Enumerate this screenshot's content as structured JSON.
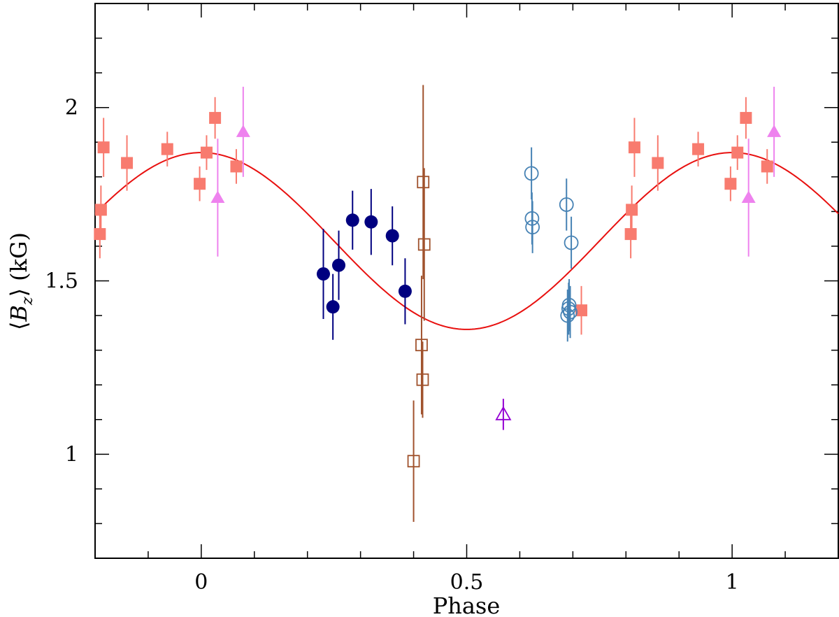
{
  "chart_data": {
    "type": "scatter",
    "title": "",
    "xlabel": "Phase",
    "ylabel_parts": {
      "open": "⟨",
      "var": "B",
      "sub": "z",
      "close": "⟩",
      "unit": "(kG)"
    },
    "xlim": [
      -0.2,
      1.2
    ],
    "ylim": [
      0.7,
      2.3
    ],
    "x_ticks": [
      0,
      0.5,
      1
    ],
    "x_tick_labels": [
      "0",
      "0.5",
      "1"
    ],
    "y_ticks": [
      1,
      1.5,
      2
    ],
    "y_tick_labels": [
      "1",
      "1.5",
      "2"
    ],
    "grid": false,
    "fit_curve": {
      "name": "sinusoidal fit",
      "color": "#e8100f",
      "mean": 1.615,
      "amplitude": 0.255,
      "max_phase": 0
    },
    "series": [
      {
        "name": "filled squares",
        "marker": "square-filled",
        "color": "#f87b6f",
        "x": [
          -0.191,
          -0.189,
          -0.184,
          -0.14,
          -0.064,
          -0.003,
          0.01,
          0.026,
          0.066,
          0.809,
          0.811,
          0.816,
          0.86,
          0.936,
          0.997,
          1.01,
          1.026,
          1.066,
          0.716
        ],
        "y": [
          1.635,
          1.705,
          1.885,
          1.84,
          1.88,
          1.78,
          1.87,
          1.97,
          1.83,
          1.635,
          1.705,
          1.885,
          1.84,
          1.88,
          1.78,
          1.87,
          1.97,
          1.83,
          1.415
        ],
        "err": [
          0.07,
          0.07,
          0.085,
          0.08,
          0.05,
          0.05,
          0.05,
          0.06,
          0.05,
          0.07,
          0.07,
          0.085,
          0.08,
          0.05,
          0.05,
          0.05,
          0.06,
          0.05,
          0.07
        ]
      },
      {
        "name": "filled triangles",
        "marker": "triangle-filled",
        "color": "#ee82ee",
        "x": [
          0.031,
          0.079,
          1.031,
          1.079
        ],
        "y": [
          1.74,
          1.93,
          1.74,
          1.93
        ],
        "err": [
          0.17,
          0.13,
          0.17,
          0.13
        ]
      },
      {
        "name": "filled circles",
        "marker": "circle-filled",
        "color": "#000080",
        "x": [
          0.23,
          0.248,
          0.259,
          0.285,
          0.32,
          0.36,
          0.384
        ],
        "y": [
          1.52,
          1.425,
          1.545,
          1.675,
          1.67,
          1.63,
          1.47
        ],
        "err": [
          0.13,
          0.095,
          0.1,
          0.085,
          0.095,
          0.085,
          0.095
        ]
      },
      {
        "name": "open squares",
        "marker": "square-open",
        "color": "#a0522d",
        "x": [
          0.4,
          0.415,
          0.417,
          0.418,
          0.42
        ],
        "y": [
          0.98,
          1.315,
          1.215,
          1.785,
          1.605
        ],
        "err": [
          0.175,
          0.2,
          0.11,
          0.28,
          0.22
        ]
      },
      {
        "name": "open circles",
        "marker": "circle-open",
        "color": "#4682b4",
        "x": [
          0.622,
          0.623,
          0.624,
          0.688,
          0.69,
          0.692,
          0.693,
          0.695,
          0.697
        ],
        "y": [
          1.81,
          1.68,
          1.655,
          1.72,
          1.4,
          1.42,
          1.43,
          1.41,
          1.61
        ],
        "err": [
          0.075,
          0.075,
          0.075,
          0.075,
          0.075,
          0.075,
          0.075,
          0.075,
          0.075
        ]
      },
      {
        "name": "open triangle",
        "marker": "triangle-open",
        "color": "#9400d3",
        "x": [
          0.569
        ],
        "y": [
          1.115
        ],
        "err": [
          0.045
        ]
      }
    ]
  }
}
